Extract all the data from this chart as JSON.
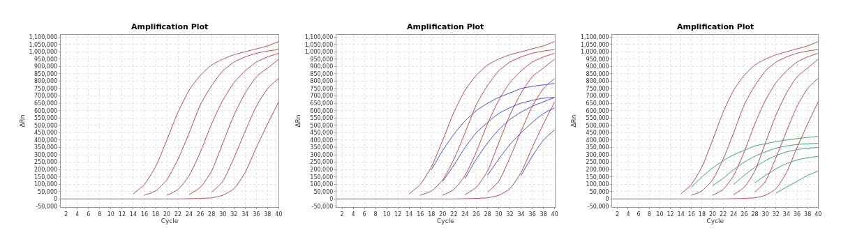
{
  "chart_data": [
    {
      "type": "line",
      "title": "Amplification Plot",
      "xlabel": "Cycle",
      "ylabel": "ΔRn",
      "xlim": [
        1,
        40
      ],
      "ylim": [
        -55000,
        1115000
      ],
      "xticks": [
        2,
        4,
        6,
        8,
        10,
        12,
        14,
        16,
        18,
        20,
        22,
        24,
        26,
        28,
        30,
        32,
        34,
        36,
        38,
        40
      ],
      "yticks": [
        {
          "value": -50000,
          "label": "-50,000"
        },
        0,
        {
          "value": 50000,
          "label": "50,000"
        },
        {
          "value": 100000,
          "label": "100,000"
        },
        {
          "value": 150000,
          "label": "150,000"
        },
        {
          "value": 200000,
          "label": "200,000"
        },
        {
          "value": 250000,
          "label": "250,000"
        },
        {
          "value": 300000,
          "label": "300,000"
        },
        {
          "value": 350000,
          "label": "350,000"
        },
        {
          "value": 400000,
          "label": "400,000"
        },
        {
          "value": 450000,
          "label": "450,000"
        },
        {
          "value": 500000,
          "label": "500,000"
        },
        {
          "value": 550000,
          "label": "550,000"
        },
        {
          "value": 600000,
          "label": "600,000"
        },
        {
          "value": 650000,
          "label": "650,000"
        },
        {
          "value": 700000,
          "label": "700,000"
        },
        {
          "value": 750000,
          "label": "750,000"
        },
        {
          "value": 800000,
          "label": "800,000"
        },
        {
          "value": 850000,
          "label": "850,000"
        },
        {
          "value": 900000,
          "label": "900,000"
        },
        {
          "value": 950000,
          "label": "950,000"
        },
        {
          "value": 1000000,
          "label": "1,000,000"
        },
        {
          "value": 1050000,
          "label": "1,050,000"
        },
        {
          "value": 1100000,
          "label": "1,100,000"
        }
      ],
      "grid": true,
      "marker": "none",
      "line_style": "solid",
      "x": [
        1,
        4,
        8,
        10,
        12,
        14,
        16,
        18,
        20,
        22,
        24,
        26,
        28,
        30,
        32,
        34,
        36,
        38,
        40
      ],
      "series": [
        {
          "color": "#c0303a",
          "values": [
            null,
            null,
            null,
            null,
            null,
            35000,
            100000,
            220000,
            400000,
            590000,
            740000,
            840000,
            910000,
            950000,
            980000,
            1000000,
            1020000,
            1040000,
            1070000
          ]
        },
        {
          "color": "#c0303a",
          "values": [
            null,
            null,
            null,
            null,
            null,
            null,
            25000,
            55000,
            130000,
            270000,
            450000,
            640000,
            770000,
            870000,
            930000,
            965000,
            990000,
            1005000,
            1015000
          ]
        },
        {
          "color": "#c0303a",
          "values": [
            null,
            null,
            null,
            null,
            null,
            null,
            null,
            null,
            25000,
            65000,
            160000,
            320000,
            510000,
            670000,
            790000,
            870000,
            930000,
            965000,
            990000
          ]
        },
        {
          "color": "#c0303a",
          "values": [
            null,
            null,
            null,
            null,
            null,
            null,
            null,
            null,
            null,
            null,
            30000,
            80000,
            190000,
            380000,
            570000,
            720000,
            830000,
            890000,
            950000
          ]
        },
        {
          "color": "#c0303a",
          "values": [
            null,
            null,
            null,
            null,
            null,
            null,
            null,
            null,
            null,
            null,
            null,
            null,
            45000,
            120000,
            280000,
            460000,
            630000,
            750000,
            820000
          ]
        },
        {
          "color": "#c0303a",
          "values": [
            0,
            0,
            0,
            0,
            0,
            0,
            0,
            0,
            0,
            0,
            2000,
            4000,
            8000,
            25000,
            70000,
            180000,
            350000,
            510000,
            660000
          ]
        }
      ]
    },
    {
      "type": "line",
      "title": "Amplification Plot",
      "xlabel": "Cycle",
      "ylabel": "ΔRn",
      "xlim": [
        1,
        40
      ],
      "ylim": [
        -55000,
        1115000
      ],
      "xticks": [
        2,
        4,
        6,
        8,
        10,
        12,
        14,
        16,
        18,
        20,
        22,
        24,
        26,
        28,
        30,
        32,
        34,
        36,
        38,
        40
      ],
      "yticks": [
        {
          "value": -50000,
          "label": "-50,000"
        },
        0,
        {
          "value": 50000,
          "label": "50,000"
        },
        {
          "value": 100000,
          "label": "100,000"
        },
        {
          "value": 150000,
          "label": "150,000"
        },
        {
          "value": 200000,
          "label": "200,000"
        },
        {
          "value": 250000,
          "label": "250,000"
        },
        {
          "value": 300000,
          "label": "300,000"
        },
        {
          "value": 350000,
          "label": "350,000"
        },
        {
          "value": 400000,
          "label": "400,000"
        },
        {
          "value": 450000,
          "label": "450,000"
        },
        {
          "value": 500000,
          "label": "500,000"
        },
        {
          "value": 550000,
          "label": "550,000"
        },
        {
          "value": 600000,
          "label": "600,000"
        },
        {
          "value": 650000,
          "label": "650,000"
        },
        {
          "value": 700000,
          "label": "700,000"
        },
        {
          "value": 750000,
          "label": "750,000"
        },
        {
          "value": 800000,
          "label": "800,000"
        },
        {
          "value": 850000,
          "label": "850,000"
        },
        {
          "value": 900000,
          "label": "900,000"
        },
        {
          "value": 950000,
          "label": "950,000"
        },
        {
          "value": 1000000,
          "label": "1,000,000"
        },
        {
          "value": 1050000,
          "label": "1,050,000"
        },
        {
          "value": 1100000,
          "label": "1,100,000"
        }
      ],
      "grid": true,
      "marker": "none",
      "line_style": "solid",
      "x": [
        1,
        4,
        8,
        10,
        12,
        14,
        16,
        18,
        20,
        22,
        24,
        26,
        28,
        30,
        32,
        34,
        36,
        38,
        40
      ],
      "series": [
        {
          "color": "#3333ee",
          "values": [
            null,
            null,
            null,
            null,
            null,
            null,
            null,
            200000,
            330000,
            440000,
            530000,
            600000,
            650000,
            690000,
            720000,
            750000,
            765000,
            775000,
            785000
          ]
        },
        {
          "color": "#3333ee",
          "values": [
            null,
            null,
            null,
            null,
            null,
            null,
            null,
            null,
            120000,
            230000,
            350000,
            450000,
            520000,
            580000,
            620000,
            650000,
            670000,
            685000,
            690000
          ]
        },
        {
          "color": "#3333ee",
          "values": [
            null,
            null,
            null,
            null,
            null,
            null,
            null,
            null,
            null,
            null,
            140000,
            270000,
            380000,
            470000,
            540000,
            590000,
            630000,
            660000,
            690000
          ]
        },
        {
          "color": "#3333ee",
          "values": [
            null,
            null,
            null,
            null,
            null,
            null,
            null,
            null,
            null,
            null,
            null,
            null,
            160000,
            270000,
            370000,
            450000,
            520000,
            580000,
            620000
          ]
        },
        {
          "color": "#3333ee",
          "values": [
            null,
            null,
            null,
            null,
            null,
            null,
            null,
            null,
            null,
            null,
            null,
            null,
            null,
            null,
            null,
            160000,
            290000,
            400000,
            470000
          ]
        },
        {
          "color": "#c0303a",
          "values": [
            null,
            null,
            null,
            null,
            null,
            35000,
            100000,
            220000,
            400000,
            590000,
            740000,
            840000,
            910000,
            950000,
            980000,
            1000000,
            1020000,
            1040000,
            1070000
          ]
        },
        {
          "color": "#c0303a",
          "values": [
            null,
            null,
            null,
            null,
            null,
            null,
            25000,
            55000,
            130000,
            270000,
            450000,
            640000,
            770000,
            870000,
            930000,
            965000,
            990000,
            1005000,
            1015000
          ]
        },
        {
          "color": "#c0303a",
          "values": [
            null,
            null,
            null,
            null,
            null,
            null,
            null,
            null,
            25000,
            65000,
            160000,
            320000,
            510000,
            670000,
            790000,
            870000,
            930000,
            965000,
            990000
          ]
        },
        {
          "color": "#c0303a",
          "values": [
            null,
            null,
            null,
            null,
            null,
            null,
            null,
            null,
            null,
            null,
            30000,
            80000,
            190000,
            380000,
            570000,
            720000,
            830000,
            890000,
            950000
          ]
        },
        {
          "color": "#c0303a",
          "values": [
            null,
            null,
            null,
            null,
            null,
            null,
            null,
            null,
            null,
            null,
            null,
            null,
            45000,
            120000,
            280000,
            460000,
            630000,
            750000,
            820000
          ]
        },
        {
          "color": "#c0303a",
          "values": [
            0,
            0,
            0,
            0,
            0,
            0,
            0,
            0,
            0,
            0,
            2000,
            4000,
            8000,
            25000,
            70000,
            180000,
            350000,
            510000,
            660000
          ]
        }
      ]
    },
    {
      "type": "line",
      "title": "Amplification Plot",
      "xlabel": "Cycle",
      "ylabel": "ΔRn",
      "xlim": [
        1,
        40
      ],
      "ylim": [
        -55000,
        1115000
      ],
      "xticks": [
        2,
        4,
        6,
        8,
        10,
        12,
        14,
        16,
        18,
        20,
        22,
        24,
        26,
        28,
        30,
        32,
        34,
        36,
        38,
        40
      ],
      "yticks": [
        {
          "value": -50000,
          "label": "-50,000"
        },
        0,
        {
          "value": 50000,
          "label": "50,000"
        },
        {
          "value": 100000,
          "label": "100,000"
        },
        {
          "value": 150000,
          "label": "150,000"
        },
        {
          "value": 200000,
          "label": "200,000"
        },
        {
          "value": 250000,
          "label": "250,000"
        },
        {
          "value": 300000,
          "label": "300,000"
        },
        {
          "value": 350000,
          "label": "350,000"
        },
        {
          "value": 400000,
          "label": "400,000"
        },
        {
          "value": 450000,
          "label": "450,000"
        },
        {
          "value": 500000,
          "label": "500,000"
        },
        {
          "value": 550000,
          "label": "550,000"
        },
        {
          "value": 600000,
          "label": "600,000"
        },
        {
          "value": 650000,
          "label": "650,000"
        },
        {
          "value": 700000,
          "label": "700,000"
        },
        {
          "value": 750000,
          "label": "750,000"
        },
        {
          "value": 800000,
          "label": "800,000"
        },
        {
          "value": 850000,
          "label": "850,000"
        },
        {
          "value": 900000,
          "label": "900,000"
        },
        {
          "value": 950000,
          "label": "950,000"
        },
        {
          "value": 1000000,
          "label": "1,000,000"
        },
        {
          "value": 1050000,
          "label": "1,050,000"
        },
        {
          "value": 1100000,
          "label": "1,100,000"
        }
      ],
      "grid": true,
      "marker": "none",
      "line_style": "solid",
      "x": [
        1,
        4,
        8,
        10,
        12,
        14,
        16,
        18,
        20,
        22,
        24,
        26,
        28,
        30,
        32,
        34,
        36,
        38,
        40
      ],
      "series": [
        {
          "color": "#1f9a5c",
          "values": [
            null,
            null,
            null,
            null,
            null,
            null,
            80000,
            150000,
            210000,
            260000,
            300000,
            330000,
            360000,
            375000,
            390000,
            400000,
            410000,
            418000,
            425000
          ]
        },
        {
          "color": "#1f9a5c",
          "values": [
            null,
            null,
            null,
            null,
            null,
            null,
            null,
            null,
            90000,
            140000,
            200000,
            250000,
            290000,
            320000,
            345000,
            360000,
            370000,
            375000,
            378000
          ]
        },
        {
          "color": "#1f9a5c",
          "values": [
            null,
            null,
            null,
            null,
            null,
            null,
            null,
            null,
            null,
            null,
            100000,
            160000,
            215000,
            260000,
            295000,
            320000,
            335000,
            345000,
            350000
          ]
        },
        {
          "color": "#1f9a5c",
          "values": [
            null,
            null,
            null,
            null,
            null,
            null,
            null,
            null,
            null,
            null,
            null,
            null,
            110000,
            160000,
            205000,
            240000,
            265000,
            280000,
            290000
          ]
        },
        {
          "color": "#1f9a5c",
          "values": [
            null,
            null,
            null,
            null,
            null,
            null,
            null,
            null,
            null,
            null,
            null,
            null,
            null,
            null,
            40000,
            80000,
            120000,
            160000,
            190000
          ]
        },
        {
          "color": "#c0303a",
          "values": [
            null,
            null,
            null,
            null,
            null,
            35000,
            100000,
            220000,
            400000,
            590000,
            740000,
            840000,
            910000,
            950000,
            980000,
            1000000,
            1020000,
            1040000,
            1070000
          ]
        },
        {
          "color": "#c0303a",
          "values": [
            null,
            null,
            null,
            null,
            null,
            null,
            25000,
            55000,
            130000,
            270000,
            450000,
            640000,
            770000,
            870000,
            930000,
            965000,
            990000,
            1005000,
            1015000
          ]
        },
        {
          "color": "#c0303a",
          "values": [
            null,
            null,
            null,
            null,
            null,
            null,
            null,
            null,
            25000,
            65000,
            160000,
            320000,
            510000,
            670000,
            790000,
            870000,
            930000,
            965000,
            990000
          ]
        },
        {
          "color": "#c0303a",
          "values": [
            null,
            null,
            null,
            null,
            null,
            null,
            null,
            null,
            null,
            null,
            30000,
            80000,
            190000,
            380000,
            570000,
            720000,
            830000,
            890000,
            950000
          ]
        },
        {
          "color": "#c0303a",
          "values": [
            null,
            null,
            null,
            null,
            null,
            null,
            null,
            null,
            null,
            null,
            null,
            null,
            45000,
            120000,
            280000,
            460000,
            630000,
            750000,
            820000
          ]
        },
        {
          "color": "#c0303a",
          "values": [
            0,
            0,
            0,
            0,
            0,
            0,
            0,
            0,
            0,
            0,
            2000,
            4000,
            8000,
            25000,
            70000,
            180000,
            350000,
            510000,
            660000
          ]
        }
      ]
    }
  ]
}
